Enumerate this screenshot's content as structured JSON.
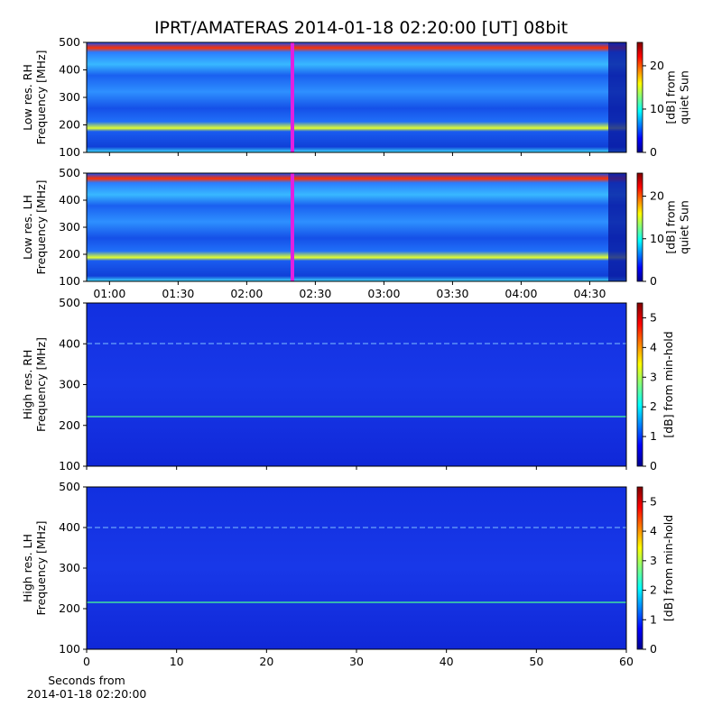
{
  "title": "IPRT/AMATERAS 2014-01-18 02:20:00 [UT]   08bit",
  "chart_data": [
    {
      "type": "heatmap",
      "ylabel": [
        "Low res. RH",
        "Frequency [MHz]"
      ],
      "ylim": [
        100,
        500
      ],
      "yticks": [
        100,
        200,
        300,
        400,
        500
      ],
      "xlim": [
        50,
        286
      ],
      "colorbar": {
        "label": [
          "[dB] from",
          "quiet Sun"
        ],
        "lim": [
          0,
          25.4
        ],
        "ticks": [
          0,
          10,
          20
        ]
      }
    },
    {
      "type": "heatmap",
      "ylabel": [
        "Low res. LH",
        "Frequency [MHz]"
      ],
      "ylim": [
        100,
        500
      ],
      "yticks": [
        100,
        200,
        300,
        400,
        500
      ],
      "xlim": [
        50,
        286
      ],
      "xticks": [
        {
          "value": 60,
          "label": "01:00"
        },
        {
          "value": 90,
          "label": "01:30"
        },
        {
          "value": 120,
          "label": "02:00"
        },
        {
          "value": 150,
          "label": "02:30"
        },
        {
          "value": 180,
          "label": "03:00"
        },
        {
          "value": 210,
          "label": "03:30"
        },
        {
          "value": 240,
          "label": "04:00"
        },
        {
          "value": 270,
          "label": "04:30"
        }
      ],
      "colorbar": {
        "label": [
          "[dB] from",
          "quiet Sun"
        ],
        "lim": [
          0,
          25.4
        ],
        "ticks": [
          0,
          10,
          20
        ]
      }
    },
    {
      "type": "heatmap",
      "ylabel": [
        "High res. RH",
        "Frequency [MHz]"
      ],
      "ylim": [
        100,
        500
      ],
      "yticks": [
        100,
        200,
        300,
        400,
        500
      ],
      "xlim": [
        0,
        60
      ],
      "colorbar": {
        "label": [
          "[dB] from min-hold"
        ],
        "lim": [
          0,
          5.5
        ],
        "ticks": [
          0,
          1,
          2,
          3,
          4,
          5
        ]
      }
    },
    {
      "type": "heatmap",
      "ylabel": [
        "High res. LH",
        "Frequency [MHz]"
      ],
      "ylim": [
        100,
        500
      ],
      "yticks": [
        100,
        200,
        300,
        400,
        500
      ],
      "xlim": [
        0,
        60
      ],
      "xticks": [
        0,
        10,
        20,
        30,
        40,
        50,
        60
      ],
      "xlabel": [
        "Seconds from",
        "2014-01-18 02:20:00"
      ],
      "colorbar": {
        "label": [
          "[dB] from min-hold"
        ],
        "lim": [
          0,
          5.5
        ],
        "ticks": [
          0,
          1,
          2,
          3,
          4,
          5
        ]
      }
    }
  ]
}
